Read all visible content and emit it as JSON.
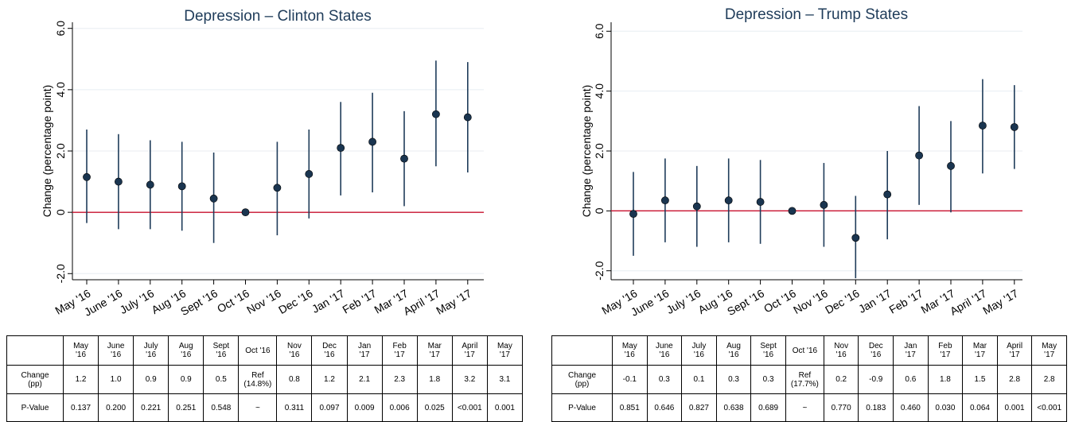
{
  "chart_data": [
    {
      "type": "scatter",
      "title": "Depression – Clinton States",
      "ylabel": "Change (percentage point)",
      "ylim": [
        -2.2,
        6.2
      ],
      "yticks": [
        "-2.0",
        "0",
        "2.0",
        "4.0",
        "6.0"
      ],
      "categories": [
        "May '16",
        "June '16",
        "July '16",
        "Aug '16",
        "Sept '16",
        "Oct '16",
        "Nov '16",
        "Dec '16",
        "Jan '17",
        "Feb '17",
        "Mar '17",
        "April '17",
        "May '17"
      ],
      "values": [
        1.15,
        1.0,
        0.9,
        0.85,
        0.45,
        0.0,
        0.8,
        1.25,
        2.1,
        2.3,
        1.75,
        3.2,
        3.1
      ],
      "lower": [
        -0.35,
        -0.55,
        -0.55,
        -0.6,
        -1.0,
        0.0,
        -0.75,
        -0.2,
        0.55,
        0.65,
        0.2,
        1.5,
        1.3
      ],
      "upper": [
        2.7,
        2.55,
        2.35,
        2.3,
        1.95,
        0.0,
        2.3,
        2.7,
        3.6,
        3.9,
        3.3,
        4.95,
        4.9
      ],
      "reference_line": 0,
      "table": {
        "headers": [
          "May\n'16",
          "June\n'16",
          "July\n'16",
          "Aug\n'16",
          "Sept\n'16",
          "Oct '16",
          "Nov\n'16",
          "Dec\n'16",
          "Jan\n'17",
          "Feb\n'17",
          "Mar\n'17",
          "April\n'17",
          "May\n'17"
        ],
        "change_label": "Change\n(pp)",
        "change": [
          "1.2",
          "1.0",
          "0.9",
          "0.9",
          "0.5",
          "Ref\n(14.8%)",
          "0.8",
          "1.2",
          "2.1",
          "2.3",
          "1.8",
          "3.2",
          "3.1"
        ],
        "pvalue_label": "P-Value",
        "pvalue": [
          "0.137",
          "0.200",
          "0.221",
          "0.251",
          "0.548",
          "~",
          "0.311",
          "0.097",
          "0.009",
          "0.006",
          "0.025",
          "<0.001",
          "0.001"
        ]
      }
    },
    {
      "type": "scatter",
      "title": "Depression – Trump States",
      "ylabel": "Change (percentage point)",
      "ylim": [
        -2.3,
        6.3
      ],
      "yticks": [
        "-2.0",
        "0",
        "2.0",
        "4.0",
        "6.0"
      ],
      "categories": [
        "May '16",
        "June '16",
        "July '16",
        "Aug '16",
        "Sept '16",
        "Oct '16",
        "Nov '16",
        "Dec '16",
        "Jan '17",
        "Feb '17",
        "Mar '17",
        "April '17",
        "May '17"
      ],
      "values": [
        -0.1,
        0.35,
        0.15,
        0.35,
        0.3,
        0.0,
        0.2,
        -0.9,
        0.55,
        1.85,
        1.5,
        2.85,
        2.8
      ],
      "lower": [
        -1.5,
        -1.05,
        -1.2,
        -1.05,
        -1.1,
        0.0,
        -1.2,
        -2.25,
        -0.95,
        0.2,
        -0.05,
        1.25,
        1.4
      ],
      "upper": [
        1.3,
        1.75,
        1.5,
        1.75,
        1.7,
        0.0,
        1.6,
        0.5,
        2.0,
        3.5,
        3.0,
        4.4,
        4.2
      ],
      "reference_line": 0,
      "table": {
        "headers": [
          "May\n'16",
          "June\n'16",
          "July\n'16",
          "Aug\n'16",
          "Sept\n'16",
          "Oct '16",
          "Nov\n'16",
          "Dec\n'16",
          "Jan\n'17",
          "Feb\n'17",
          "Mar\n'17",
          "April\n'17",
          "May\n'17"
        ],
        "change_label": "Change\n(pp)",
        "change": [
          "-0.1",
          "0.3",
          "0.1",
          "0.3",
          "0.3",
          "Ref\n(17.7%)",
          "0.2",
          "-0.9",
          "0.6",
          "1.8",
          "1.5",
          "2.8",
          "2.8"
        ],
        "pvalue_label": "P-Value",
        "pvalue": [
          "0.851",
          "0.646",
          "0.827",
          "0.638",
          "0.689",
          "~",
          "0.770",
          "0.183",
          "0.460",
          "0.030",
          "0.064",
          "0.001",
          "<0.001"
        ]
      }
    }
  ],
  "colors": {
    "point": "#1a3550",
    "errorbar": "#1f3c5a",
    "refline": "#c8102e",
    "grid": "#e8edf2",
    "title": "#1f3c5a"
  }
}
